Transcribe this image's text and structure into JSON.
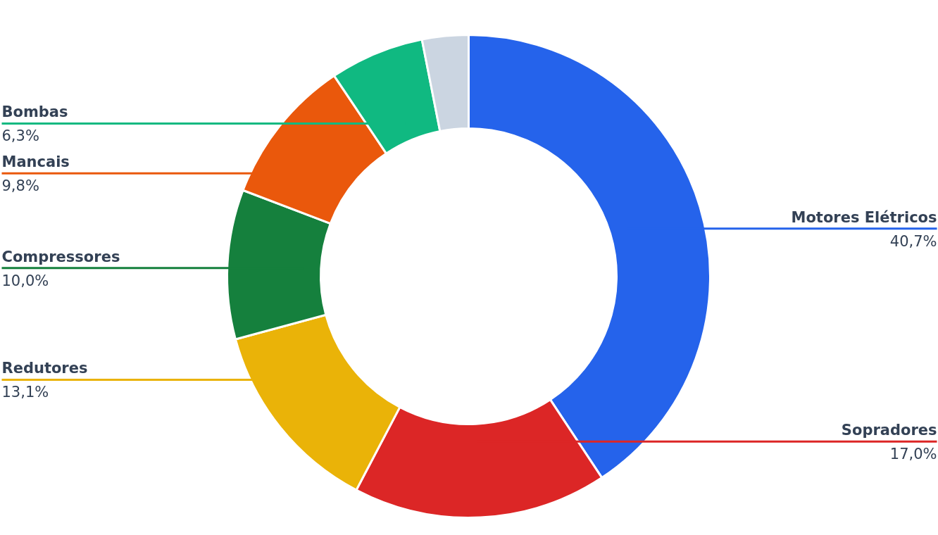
{
  "chart_data": {
    "type": "donut",
    "categories": [
      "Motores Elétricos",
      "Sopradores",
      "Redutores",
      "Compressores",
      "Mancais",
      "Bombas",
      null
    ],
    "values": [
      40.7,
      17.0,
      13.1,
      10.0,
      9.8,
      6.3,
      3.1
    ],
    "colors": [
      "#2563eb",
      "#dc2626",
      "#eab308",
      "#15803d",
      "#ea580c",
      "#10b981",
      "#cbd5e1"
    ],
    "value_labels": [
      "40,7%",
      "17,0%",
      "13,1%",
      "10,0%",
      "9,8%",
      "6,3%",
      null
    ],
    "legend": false
  }
}
